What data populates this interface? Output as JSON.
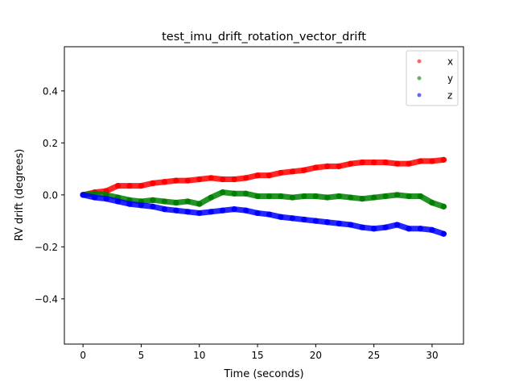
{
  "chart_data": {
    "type": "scatter",
    "title": "test_imu_drift_rotation_vector_drift",
    "xlabel": "Time (seconds)",
    "ylabel": "RV drift (degrees)",
    "xlim": [
      -1.6,
      32.7
    ],
    "ylim": [
      -0.574,
      0.57
    ],
    "xticks": [
      0,
      5,
      10,
      15,
      20,
      25,
      30
    ],
    "yticks": [
      -0.4,
      -0.2,
      0.0,
      0.2,
      0.4
    ],
    "xtick_labels": [
      "0",
      "5",
      "10",
      "15",
      "20",
      "25",
      "30"
    ],
    "ytick_labels": [
      "−0.4",
      "−0.2",
      "0.0",
      "0.2",
      "0.4"
    ],
    "grid": false,
    "legend_position": "top-right",
    "x": [
      0,
      1,
      2,
      3,
      4,
      5,
      6,
      7,
      8,
      9,
      10,
      11,
      12,
      13,
      14,
      15,
      16,
      17,
      18,
      19,
      20,
      21,
      22,
      23,
      24,
      25,
      26,
      27,
      28,
      29,
      30,
      31
    ],
    "series": [
      {
        "name": "x",
        "color": "#ff0000",
        "values": [
          0,
          0.01,
          0.015,
          0.035,
          0.035,
          0.035,
          0.045,
          0.05,
          0.055,
          0.055,
          0.06,
          0.065,
          0.06,
          0.06,
          0.065,
          0.075,
          0.075,
          0.085,
          0.09,
          0.095,
          0.105,
          0.11,
          0.11,
          0.12,
          0.125,
          0.125,
          0.125,
          0.12,
          0.12,
          0.13,
          0.13,
          0.135
        ]
      },
      {
        "name": "y",
        "color": "#008000",
        "values": [
          0,
          0.005,
          0,
          -0.01,
          -0.02,
          -0.025,
          -0.02,
          -0.025,
          -0.03,
          -0.025,
          -0.035,
          -0.01,
          0.01,
          0.005,
          0.005,
          -0.005,
          -0.005,
          -0.005,
          -0.01,
          -0.005,
          -0.005,
          -0.01,
          -0.005,
          -0.01,
          -0.015,
          -0.01,
          -0.005,
          0.0,
          -0.005,
          -0.005,
          -0.03,
          -0.045
        ]
      },
      {
        "name": "z",
        "color": "#0000ff",
        "values": [
          0,
          -0.01,
          -0.015,
          -0.025,
          -0.035,
          -0.04,
          -0.045,
          -0.055,
          -0.06,
          -0.065,
          -0.07,
          -0.065,
          -0.06,
          -0.055,
          -0.06,
          -0.07,
          -0.075,
          -0.085,
          -0.09,
          -0.095,
          -0.1,
          -0.105,
          -0.11,
          -0.115,
          -0.125,
          -0.13,
          -0.125,
          -0.115,
          -0.13,
          -0.13,
          -0.135,
          -0.15
        ]
      }
    ]
  }
}
